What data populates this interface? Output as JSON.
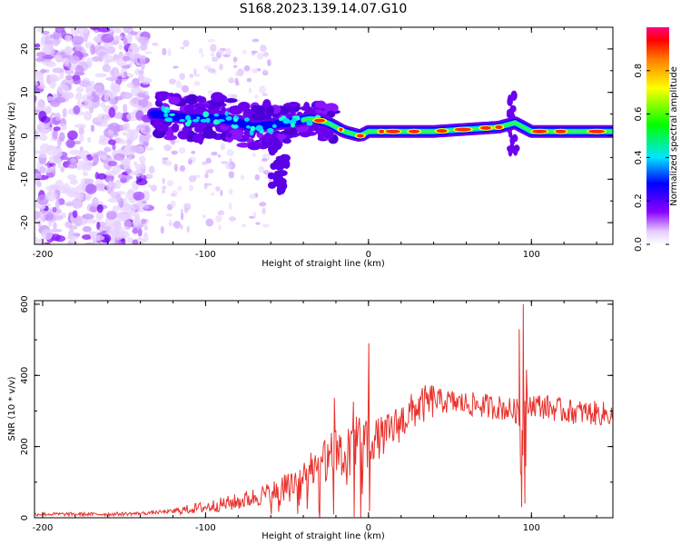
{
  "title": "S168.2023.139.14.07.G10",
  "chart_data": [
    {
      "type": "heatmap",
      "xlabel": "Height of straight line (km)",
      "ylabel": "Frequency (Hz)",
      "xlim": [
        -205,
        150
      ],
      "ylim": [
        -25,
        25
      ],
      "xticks": [
        "-200",
        "-100",
        "0",
        "100"
      ],
      "yticks": [
        "-20",
        "-10",
        "0",
        "10",
        "20"
      ],
      "colorbar": {
        "label": "Normalized spectral amplitude",
        "range": [
          0,
          1
        ],
        "ticks": [
          "0.0",
          "0.2",
          "0.4",
          "0.6",
          "0.8"
        ]
      },
      "ridge": {
        "x": [
          -130,
          -110,
          -90,
          -70,
          -50,
          -35,
          -25,
          -15,
          -5,
          0,
          10,
          40,
          80,
          90,
          100,
          150
        ],
        "y": [
          5,
          4,
          4,
          2,
          3,
          4,
          3,
          1,
          0,
          1,
          1,
          1,
          2,
          3,
          1,
          1
        ]
      }
    },
    {
      "type": "line",
      "xlabel": "Height of straight line (km)",
      "ylabel": "SNR (10 * v/v)",
      "xlim": [
        -205,
        150
      ],
      "ylim": [
        0,
        610
      ],
      "xticks": [
        "-200",
        "-100",
        "0",
        "100"
      ],
      "yticks": [
        "0",
        "200",
        "400",
        "600"
      ],
      "color": "#e8322d",
      "x": [
        -205,
        -180,
        -160,
        -140,
        -120,
        -100,
        -80,
        -60,
        -40,
        -30,
        -20,
        -10,
        0,
        10,
        20,
        30,
        40,
        60,
        80,
        90,
        95,
        100,
        120,
        150
      ],
      "y": [
        10,
        10,
        10,
        12,
        18,
        30,
        45,
        70,
        110,
        150,
        180,
        200,
        215,
        230,
        270,
        310,
        330,
        320,
        310,
        300,
        300,
        320,
        300,
        290
      ],
      "spikes": [
        {
          "x": 0.2,
          "y": 490
        },
        {
          "x": 0.6,
          "y": 20
        },
        {
          "x": 92.5,
          "y": 530
        },
        {
          "x": 94,
          "y": 30
        },
        {
          "x": 95,
          "y": 600
        },
        {
          "x": 96,
          "y": 40
        }
      ]
    }
  ]
}
